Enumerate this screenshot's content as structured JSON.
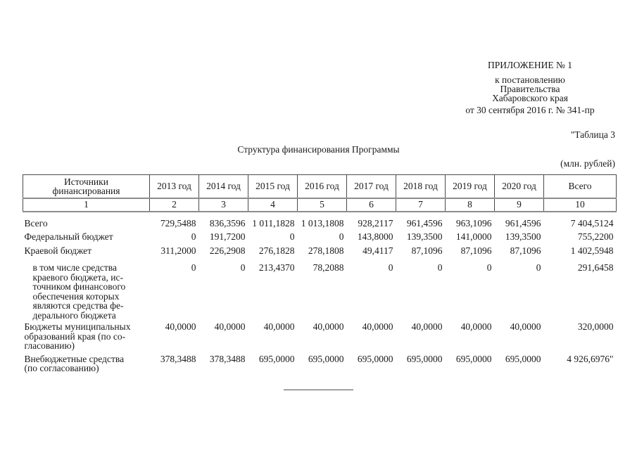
{
  "appendix": {
    "title": "ПРИЛОЖЕНИЕ № 1",
    "line1": "к постановлению",
    "line2": "Правительства",
    "line3": "Хабаровского края",
    "line4": "от 30 сентября 2016 г. № 341-пр"
  },
  "table_label": "\"Таблица 3",
  "doc_title": "Структура финансирования Программы",
  "units": "(млн. рублей)",
  "table": {
    "columns": [
      "Источники\nфинансирования",
      "2013 год",
      "2014 год",
      "2015 год",
      "2016 год",
      "2017 год",
      "2018 год",
      "2019 год",
      "2020 год",
      "Всего"
    ],
    "column_indexes": [
      "1",
      "2",
      "3",
      "4",
      "5",
      "6",
      "7",
      "8",
      "9",
      "10"
    ],
    "rows": [
      {
        "label": "Всего",
        "values": [
          "729,5488",
          "836,3596",
          "1 011,1828",
          "1 013,1808",
          "928,2117",
          "961,4596",
          "963,1096",
          "961,4596",
          "7 404,5124"
        ]
      },
      {
        "label": "Федеральный бюджет",
        "values": [
          "0",
          "191,7200",
          "0",
          "0",
          "143,8000",
          "139,3500",
          "141,0000",
          "139,3500",
          "755,2200"
        ]
      },
      {
        "label": "Краевой бюджет",
        "values": [
          "311,2000",
          "226,2908",
          "276,1828",
          "278,1808",
          "49,4117",
          "87,1096",
          "87,1096",
          "87,1096",
          "1 402,5948"
        ]
      },
      {
        "label": "в том числе средства\nкраевого бюджета, ис-\nточником финансового\nобеспечения которых\nявляются средства фе-\nдерального бюджета",
        "values": [
          "0",
          "0",
          "213,4370",
          "78,2088",
          "0",
          "0",
          "0",
          "0",
          "291,6458"
        ]
      },
      {
        "label": "Бюджеты муниципальных\nобразований края (по со-\nгласованию)",
        "values": [
          "40,0000",
          "40,0000",
          "40,0000",
          "40,0000",
          "40,0000",
          "40,0000",
          "40,0000",
          "40,0000",
          "320,0000"
        ]
      },
      {
        "label": "Внебюджетные средства\n(по согласованию)",
        "values": [
          "378,3488",
          "378,3488",
          "695,0000",
          "695,0000",
          "695,0000",
          "695,0000",
          "695,0000",
          "695,0000",
          "4 926,6976\""
        ]
      }
    ]
  }
}
